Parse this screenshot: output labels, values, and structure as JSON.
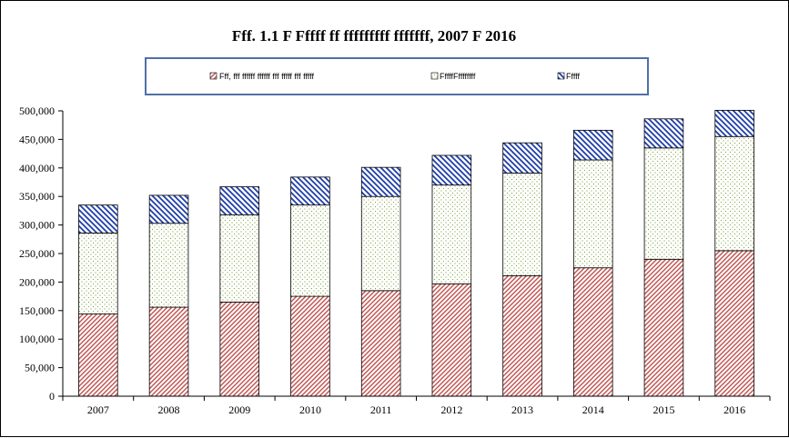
{
  "chart_data": {
    "type": "bar",
    "stacked": true,
    "title": "Fff. 1.1 F Fffff ff fffffffff fffffff, 2007 F 2016",
    "xlabel": "",
    "ylabel": "",
    "categories": [
      "2007",
      "2008",
      "2009",
      "2010",
      "2011",
      "2012",
      "2013",
      "2014",
      "2015",
      "2016"
    ],
    "ylim": [
      0,
      500000
    ],
    "yticks": [
      0,
      50000,
      100000,
      150000,
      200000,
      250000,
      300000,
      350000,
      400000,
      450000,
      500000
    ],
    "ytick_labels": [
      "0",
      "50,000",
      "100,000",
      "150,000",
      "200,000",
      "250,000",
      "300,000",
      "350,000",
      "400,000",
      "450,000",
      "500,000"
    ],
    "grid": false,
    "legend_position": "top",
    "series": [
      {
        "name": "Fff, fff ffffff ffffff fff fffff fff fffff",
        "color": "#c0504d",
        "pattern": "diagonal-red",
        "values": [
          144000,
          156000,
          165000,
          175000,
          185000,
          197000,
          211000,
          225000,
          240000,
          255000
        ]
      },
      {
        "name": "FffffFffffffff",
        "color": "#9bbb59",
        "pattern": "dots-green",
        "values": [
          142000,
          147000,
          153000,
          160000,
          165000,
          173000,
          180000,
          189000,
          195000,
          200000
        ]
      },
      {
        "name": "Fffff",
        "color": "#1f3ea8",
        "pattern": "diagonal-blue",
        "values": [
          49000,
          49000,
          49000,
          49000,
          51000,
          52000,
          53000,
          52000,
          51000,
          46000
        ]
      }
    ]
  }
}
